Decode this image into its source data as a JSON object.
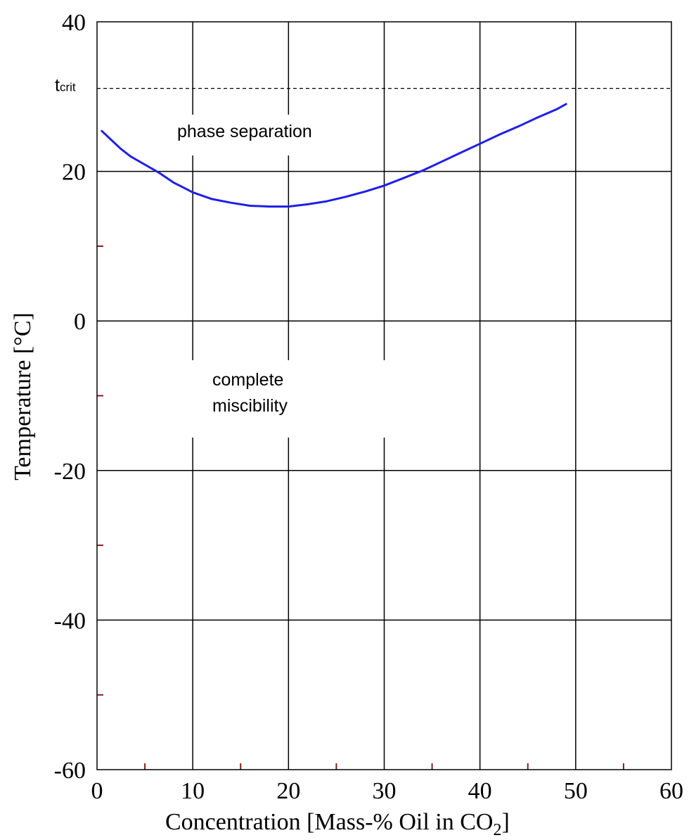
{
  "chart_data": {
    "type": "line",
    "title": "",
    "xlabel": "Concentration [Mass-% Oil in CO",
    "xlabel_subscript": "2",
    "xlabel_suffix": "]",
    "ylabel": "Temperature [°C]",
    "xlim": [
      0,
      60
    ],
    "ylim": [
      -60,
      40
    ],
    "x_ticks": [
      0,
      10,
      20,
      30,
      40,
      50,
      60
    ],
    "x_tick_labels": [
      "0",
      "10",
      "20",
      "30",
      "40",
      "50",
      "60"
    ],
    "x_minor_ticks": [
      5,
      15,
      25,
      35,
      45,
      55
    ],
    "y_ticks": [
      -60,
      -40,
      -20,
      0,
      20,
      40
    ],
    "y_tick_labels": [
      "-60",
      "-40",
      "-20",
      "0",
      "20",
      "40"
    ],
    "y_minor_ticks": [
      -50,
      -30,
      -10,
      10
    ],
    "grid": true,
    "legend": "none",
    "series": [
      {
        "color": "#1f1fe6",
        "x": [
          0.5,
          1.5,
          2.5,
          3.5,
          5,
          6.5,
          8,
          10,
          12,
          14,
          16,
          18,
          20,
          22,
          24,
          26,
          28,
          30,
          32,
          34,
          36,
          38,
          40,
          42,
          44,
          46,
          48,
          49
        ],
        "y": [
          25.4,
          24.2,
          23.0,
          22.0,
          20.9,
          19.8,
          18.5,
          17.2,
          16.3,
          15.8,
          15.4,
          15.3,
          15.3,
          15.6,
          16.0,
          16.6,
          17.3,
          18.1,
          19.1,
          20.1,
          21.3,
          22.5,
          23.7,
          24.9,
          26.0,
          27.2,
          28.3,
          29.0
        ]
      }
    ],
    "reference_line": {
      "label": "t",
      "label_subscript": "crit",
      "y": 31.1,
      "style": "dashed"
    },
    "annotations": {
      "upper": "phase separation",
      "lower_line1": "complete",
      "lower_line2": "miscibility"
    },
    "colors": {
      "curve": "#1f1fe6",
      "grid": "#000000",
      "minor_tick": "#8b1a1a"
    }
  }
}
